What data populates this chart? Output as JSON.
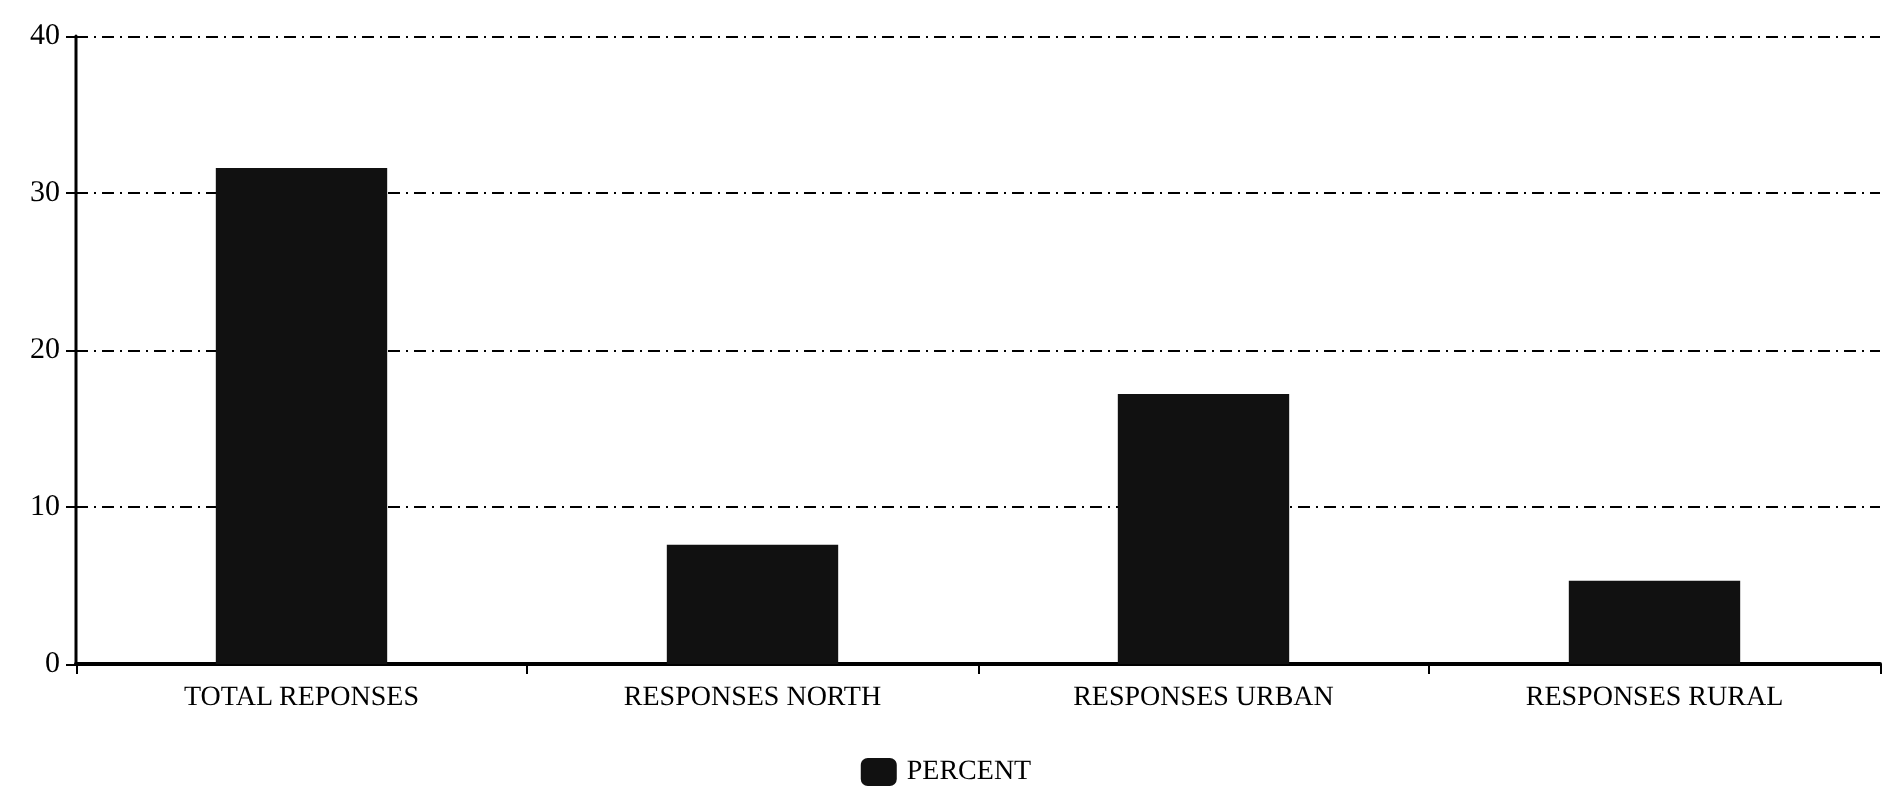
{
  "chart_data": {
    "type": "bar",
    "categories": [
      "TOTAL REPONSES",
      "RESPONSES NORTH",
      "RESPONSES URBAN",
      "RESPONSES RURAL"
    ],
    "series": [
      {
        "name": "PERCENT",
        "color": "#111111",
        "values": [
          31.6,
          7.6,
          17.2,
          5.3
        ]
      }
    ],
    "ylim": [
      0,
      40
    ],
    "yticks": [
      0,
      10,
      20,
      30,
      40
    ],
    "grid": "y",
    "legend": "bottom"
  }
}
